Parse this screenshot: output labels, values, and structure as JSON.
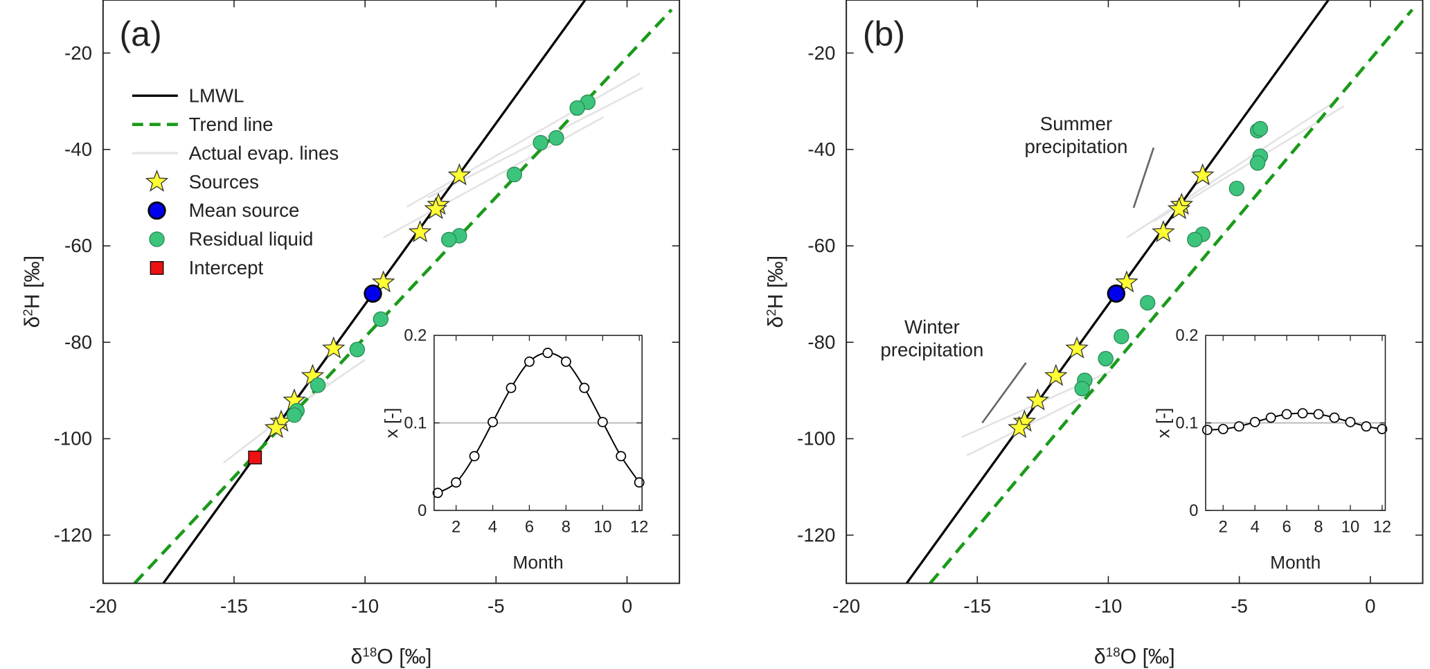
{
  "chart_data": [
    {
      "type": "scatter",
      "panel_label": "(a)",
      "xlabel": [
        "δ",
        "18",
        "O [‰]"
      ],
      "ylabel": [
        "δ",
        "2",
        "H [‰]"
      ],
      "xlim": [
        -20,
        2
      ],
      "ylim": [
        -130,
        -9
      ],
      "xticks": [
        -20,
        -15,
        -10,
        -5,
        0
      ],
      "yticks": [
        -20,
        -40,
        -60,
        -80,
        -100,
        -120
      ],
      "legend": "upper left",
      "series": [
        {
          "name": "LMWL",
          "kind": "line",
          "color": "#000000",
          "x": [
            -17.7,
            -1.6
          ],
          "y": [
            -130,
            -9
          ]
        },
        {
          "name": "Trend line",
          "kind": "line",
          "color": "#1a9a1a",
          "dash": true,
          "x": [
            -18.8,
            1.7
          ],
          "y": [
            -130,
            -11
          ]
        },
        {
          "name": "Actual evap. lines",
          "kind": "line",
          "color": "#e3e3e3",
          "x": [
            -8.4,
            0.5,
            null,
            -7.6,
            0.6,
            null,
            -9.3,
            -0.9,
            null,
            -15.4,
            -11.4,
            null,
            -13.8,
            -10.0
          ],
          "y": [
            -51.9,
            -24.2,
            null,
            -50,
            -27.2,
            null,
            -58.3,
            -33.3,
            null,
            -105,
            -88.3,
            null,
            -97.8,
            -83.6
          ]
        },
        {
          "name": "Sources",
          "kind": "scatter",
          "marker": "star",
          "color": "#ffff33",
          "x": [
            -6.4,
            -7.2,
            -7.3,
            -7.9,
            -9.3,
            -11.2,
            -12.0,
            -12.7,
            -13.2,
            -13.4
          ],
          "y": [
            -45.4,
            -51.5,
            -52.4,
            -57.2,
            -67.6,
            -81.3,
            -87.0,
            -92.1,
            -96.5,
            -97.8
          ]
        },
        {
          "name": "Mean source",
          "kind": "scatter",
          "marker": "circle",
          "color": "#0000ee",
          "x": [
            -9.7
          ],
          "y": [
            -69.9
          ]
        },
        {
          "name": "Residual liquid",
          "kind": "scatter",
          "marker": "dot",
          "color": "#3cc47c",
          "x": [
            -1.5,
            -1.9,
            -2.7,
            -3.3,
            -4.3,
            -6.4,
            -6.8,
            -9.4,
            -10.3,
            -11.8,
            -12.6,
            -12.7
          ],
          "y": [
            -30.2,
            -31.4,
            -37.6,
            -38.6,
            -45.2,
            -57.9,
            -58.7,
            -75.2,
            -81.5,
            -88.9,
            -94.2,
            -95.1
          ]
        },
        {
          "name": "Intercept",
          "kind": "scatter",
          "marker": "square",
          "color": "#ee1111",
          "x": [
            -14.2
          ],
          "y": [
            -103.9
          ]
        }
      ],
      "inset": {
        "type": "line",
        "xlabel": "Month",
        "ylabel": "x [-]",
        "xlim": [
          0.8,
          12.15
        ],
        "ylim": [
          0,
          0.2
        ],
        "xticks": [
          2,
          4,
          6,
          8,
          10,
          12
        ],
        "yticks": [
          0,
          0.1,
          0.2
        ],
        "hline": 0.1,
        "x": [
          1,
          2,
          3,
          4,
          5,
          6,
          7,
          8,
          9,
          10,
          11,
          12
        ],
        "values": [
          0.02,
          0.032,
          0.062,
          0.101,
          0.14,
          0.17,
          0.18,
          0.17,
          0.14,
          0.101,
          0.062,
          0.032
        ]
      }
    },
    {
      "type": "scatter",
      "panel_label": "(b)",
      "xlabel": [
        "δ",
        "18",
        "O [‰]"
      ],
      "ylabel": [
        "δ",
        "2",
        "H [‰]"
      ],
      "xlim": [
        -20,
        2
      ],
      "ylim": [
        -130,
        -9
      ],
      "xticks": [
        -20,
        -15,
        -10,
        -5,
        0
      ],
      "yticks": [
        -20,
        -40,
        -60,
        -80,
        -100,
        -120
      ],
      "series": [
        {
          "kind": "line",
          "color": "#000000",
          "x": [
            -17.7,
            -1.6
          ],
          "y": [
            -130,
            -9
          ]
        },
        {
          "kind": "line",
          "color": "#1a9a1a",
          "dash": true,
          "x": [
            -16.8,
            1.6
          ],
          "y": [
            -130,
            -11
          ]
        },
        {
          "kind": "line",
          "color": "#e3e3e3",
          "x": [
            -9.3,
            -1.3,
            null,
            -8.3,
            -1.0,
            null,
            -15.6,
            -9.9,
            null,
            -15.4,
            -10.5
          ],
          "y": [
            -58.3,
            -29.9,
            null,
            -55,
            -31,
            null,
            -99.7,
            -86,
            null,
            -103.5,
            -90.2
          ]
        },
        {
          "kind": "scatter",
          "marker": "star",
          "color": "#ffff33",
          "x": [
            -6.4,
            -7.2,
            -7.3,
            -7.9,
            -9.3,
            -11.2,
            -12.0,
            -12.7,
            -13.2,
            -13.4
          ],
          "y": [
            -45.4,
            -51.5,
            -52.4,
            -57.2,
            -67.6,
            -81.3,
            -87.0,
            -92.1,
            -96.5,
            -97.8
          ]
        },
        {
          "kind": "scatter",
          "marker": "circle",
          "color": "#0000ee",
          "x": [
            -9.7
          ],
          "y": [
            -69.9
          ]
        },
        {
          "kind": "scatter",
          "marker": "dot",
          "color": "#3cc47c",
          "x": [
            -4.3,
            -4.2,
            -4.2,
            -4.3,
            -5.1,
            -6.4,
            -6.7,
            -8.5,
            -9.5,
            -10.1,
            -10.9,
            -11.0
          ],
          "y": [
            -36.1,
            -35.7,
            -41.4,
            -42.8,
            -48.1,
            -57.6,
            -58.7,
            -71.8,
            -78.8,
            -83.4,
            -87.9,
            -89.6
          ]
        }
      ],
      "annotations": [
        {
          "text": [
            "Summer",
            "precipitation"
          ]
        },
        {
          "text": [
            "Winter",
            "precipitation"
          ]
        }
      ],
      "inset": {
        "type": "line",
        "xlabel": "Month",
        "ylabel": "x [-]",
        "xlim": [
          0.9,
          12.2
        ],
        "ylim": [
          0,
          0.2
        ],
        "xticks": [
          2,
          4,
          6,
          8,
          10,
          12
        ],
        "yticks": [
          0,
          0.1,
          0.2
        ],
        "hline": 0.1,
        "x": [
          1,
          2,
          3,
          4,
          5,
          6,
          7,
          8,
          9,
          10,
          11,
          12
        ],
        "values": [
          0.092,
          0.093,
          0.096,
          0.101,
          0.106,
          0.11,
          0.111,
          0.11,
          0.106,
          0.101,
          0.096,
          0.093
        ]
      }
    }
  ]
}
